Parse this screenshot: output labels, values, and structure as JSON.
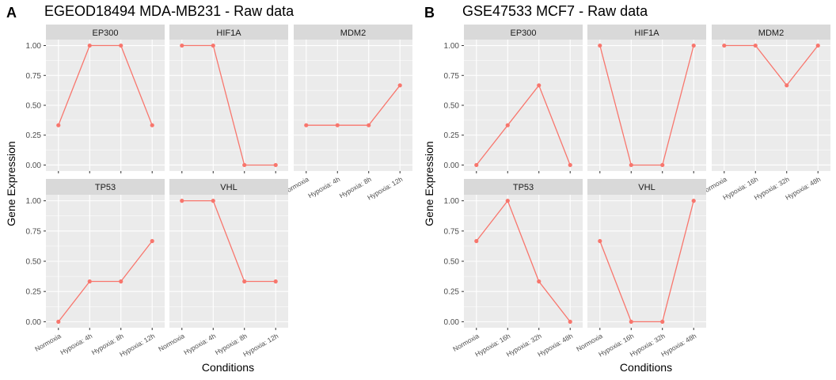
{
  "colors": {
    "line": "#f8766d",
    "panel": "#ebebeb",
    "strip": "#d9d9d9",
    "grid": "#ffffff",
    "tick": "#333333"
  },
  "chart_data": [
    {
      "type": "line",
      "letter": "A",
      "title": "EGEOD18494 MDA-MB231 - Raw data",
      "xlabel": "Conditions",
      "ylabel": "Gene Expression",
      "categories": [
        "Normoxia",
        "Hypoxia: 4h",
        "Hypoxia: 8h",
        "Hypoxia: 12h"
      ],
      "yticks": [
        "0.00",
        "0.25",
        "0.50",
        "0.75",
        "1.00"
      ],
      "ylim": [
        -0.05,
        1.05
      ],
      "facets": [
        {
          "name": "EP300",
          "values": [
            0.333,
            1.0,
            1.0,
            0.333
          ]
        },
        {
          "name": "HIF1A",
          "values": [
            1.0,
            1.0,
            0.0,
            0.0
          ]
        },
        {
          "name": "MDM2",
          "values": [
            0.333,
            0.333,
            0.333,
            0.667
          ]
        },
        {
          "name": "TP53",
          "values": [
            0.0,
            0.333,
            0.333,
            0.667
          ]
        },
        {
          "name": "VHL",
          "values": [
            1.0,
            1.0,
            0.333,
            0.333
          ]
        }
      ]
    },
    {
      "type": "line",
      "letter": "B",
      "title": "GSE47533 MCF7 - Raw data",
      "xlabel": "Conditions",
      "ylabel": "Gene Expression",
      "categories": [
        "Normoxia",
        "Hypoxia: 16h",
        "Hypoxia: 32h",
        "Hypoxia: 48h"
      ],
      "yticks": [
        "0.00",
        "0.25",
        "0.50",
        "0.75",
        "1.00"
      ],
      "ylim": [
        -0.05,
        1.05
      ],
      "facets": [
        {
          "name": "EP300",
          "values": [
            0.0,
            0.333,
            0.667,
            0.0
          ]
        },
        {
          "name": "HIF1A",
          "values": [
            1.0,
            0.0,
            0.0,
            1.0
          ]
        },
        {
          "name": "MDM2",
          "values": [
            1.0,
            1.0,
            0.667,
            1.0
          ]
        },
        {
          "name": "TP53",
          "values": [
            0.667,
            1.0,
            0.333,
            0.0
          ]
        },
        {
          "name": "VHL",
          "values": [
            0.667,
            0.0,
            0.0,
            1.0
          ]
        }
      ]
    }
  ]
}
